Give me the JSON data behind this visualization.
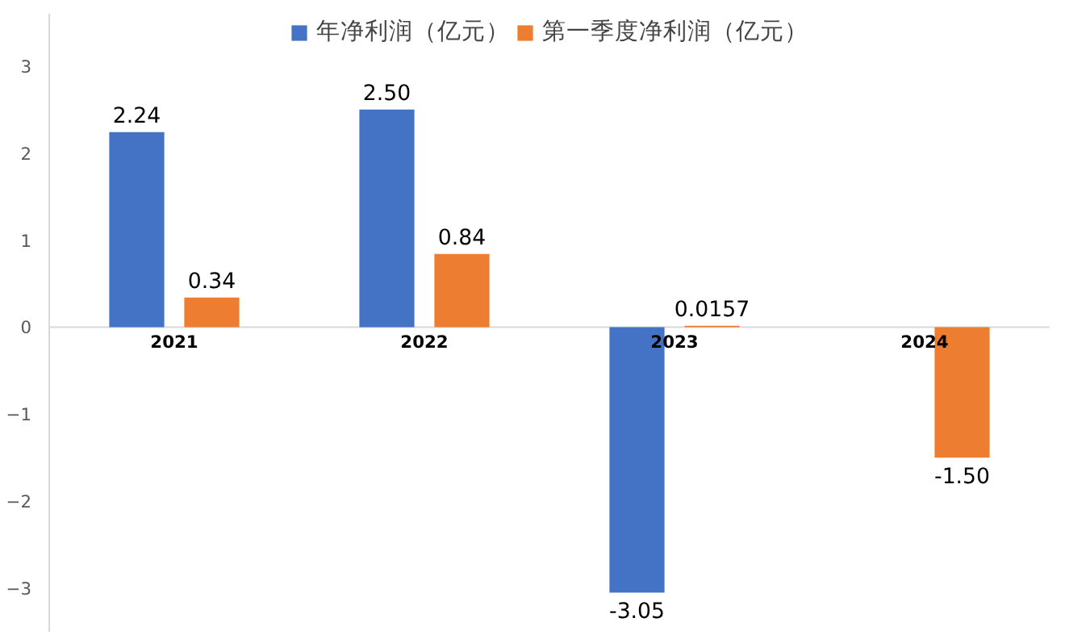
{
  "chart_data": {
    "type": "bar",
    "categories": [
      "2021",
      "2022",
      "2023",
      "2024"
    ],
    "series": [
      {
        "name": "年净利润（亿元）",
        "color": "#4472c4",
        "values": [
          2.24,
          2.5,
          -3.05,
          null
        ]
      },
      {
        "name": "第一季度净利润（亿元）",
        "color": "#ed7d31",
        "values": [
          0.34,
          0.84,
          0.0157,
          -1.5
        ]
      }
    ],
    "value_labels": [
      [
        "2.24",
        "2.50",
        "-3.05",
        null
      ],
      [
        "0.34",
        "0.84",
        "0.0157",
        "-1.50"
      ]
    ],
    "ylim": [
      -3.5,
      3.6
    ],
    "yticks": [
      -3,
      -2,
      -1,
      0,
      1,
      2,
      3
    ],
    "grid": false,
    "legend": "top"
  }
}
